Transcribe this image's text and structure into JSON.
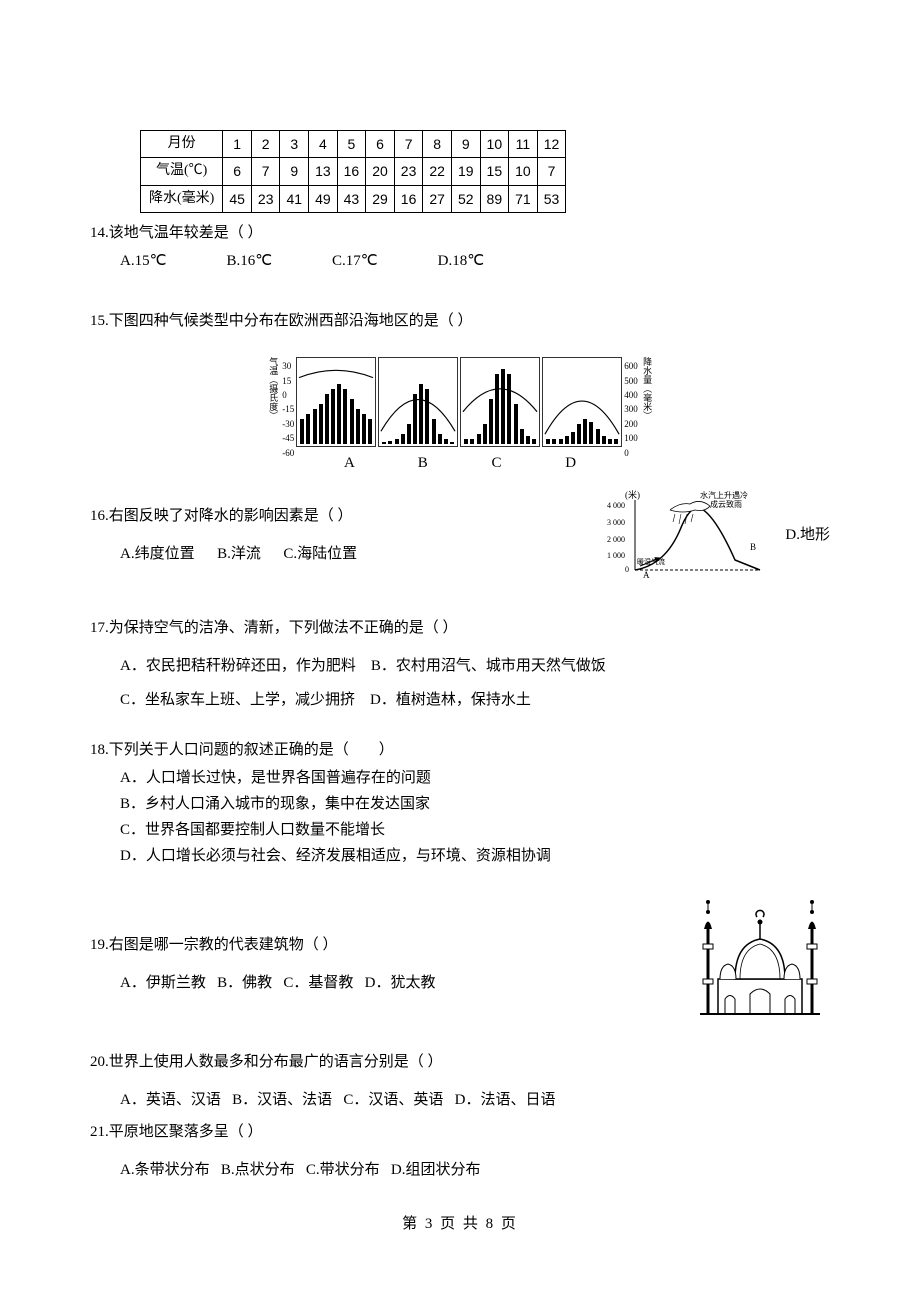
{
  "table": {
    "headers": [
      "月份",
      "1",
      "2",
      "3",
      "4",
      "5",
      "6",
      "7",
      "8",
      "9",
      "10",
      "11",
      "12"
    ],
    "temp_label": "气温(℃)",
    "temp": [
      "6",
      "7",
      "9",
      "13",
      "16",
      "20",
      "23",
      "22",
      "19",
      "15",
      "10",
      "7"
    ],
    "precip_label": "降水(毫米)",
    "precip": [
      "45",
      "23",
      "41",
      "49",
      "43",
      "29",
      "16",
      "27",
      "52",
      "89",
      "71",
      "53"
    ]
  },
  "q14": {
    "text": "14.该地气温年较差是（  ）",
    "a": "A.15℃",
    "b": "B.16℃",
    "c": "C.17℃",
    "d": "D.18℃"
  },
  "q15": {
    "text": "15.下图四种气候类型中分布在欧洲西部沿海地区的是（  ）",
    "axis_left_label": "气温（摄氏度）",
    "axis_left": [
      "30",
      "15",
      "0",
      "-15",
      "-30",
      "-45",
      "-60"
    ],
    "axis_right_label": "降水量（毫米）",
    "axis_right": [
      "600",
      "500",
      "400",
      "300",
      "200",
      "100",
      "0"
    ],
    "chart_labels": "A   B        C   D",
    "charts": {
      "A": {
        "bars": [
          25,
          30,
          35,
          40,
          50,
          55,
          60,
          55,
          45,
          35,
          30,
          25
        ],
        "line": "M2,20 Q40,5 78,20"
      },
      "B": {
        "bars": [
          2,
          3,
          5,
          10,
          20,
          50,
          60,
          55,
          25,
          10,
          5,
          2
        ],
        "line": "M2,75 Q40,10 78,75"
      },
      "C": {
        "bars": [
          5,
          5,
          10,
          20,
          45,
          70,
          75,
          70,
          40,
          15,
          8,
          5
        ],
        "line": "M2,55 Q40,8 78,55"
      },
      "D": {
        "bars": [
          5,
          5,
          5,
          8,
          12,
          20,
          25,
          22,
          15,
          8,
          5,
          5
        ],
        "line": "M2,78 Q40,10 78,78"
      }
    }
  },
  "q16": {
    "text": "16.右图反映了对降水的影响因素是（  ）",
    "a": "A.纬度位置",
    "b": "B.洋流",
    "c": "C.海陆位置",
    "d": "D.地形",
    "fig": {
      "y_label": "(米)",
      "y_ticks": [
        "4 000",
        "3 000",
        "2 000",
        "1 000",
        "0"
      ],
      "cloud_label": "水汽上升遇冷成云致雨",
      "wind_label": "暖湿气流",
      "a_label": "A",
      "b_label": "B"
    }
  },
  "q17": {
    "text": "17.为保持空气的洁净、清新，下列做法不正确的是（  ）",
    "a": "A．农民把秸秆粉碎还田，作为肥料",
    "b": "B．农村用沼气、城市用天然气做饭",
    "c": "C．坐私家车上班、上学，减少拥挤",
    "d": "D．植树造林，保持水土"
  },
  "q18": {
    "text": "18.下列关于人口问题的叙述正确的是（　　）",
    "a": "A．人口增长过快，是世界各国普遍存在的问题",
    "b": "B．乡村人口涌入城市的现象，集中在发达国家",
    "c": "C．世界各国都要控制人口数量不能增长",
    "d": "D．人口增长必须与社会、经济发展相适应，与环境、资源相协调"
  },
  "q19": {
    "text": "19.右图是哪一宗教的代表建筑物（  ）",
    "a": "A．伊斯兰教",
    "b": "B．佛教",
    "c": "C．基督教",
    "d": "D．犹太教"
  },
  "q20": {
    "text": "20.世界上使用人数最多和分布最广的语言分别是（  ）",
    "a": "A．英语、汉语",
    "b": "B．汉语、法语",
    "c": "C．汉语、英语",
    "d": "D．法语、日语"
  },
  "q21": {
    "text": "21.平原地区聚落多呈（  ）",
    "a": "A.条带状分布",
    "b": "B.点状分布",
    "c": "C.带状分布",
    "d": "D.组团状分布"
  },
  "footer": "第 3 页 共 8 页"
}
